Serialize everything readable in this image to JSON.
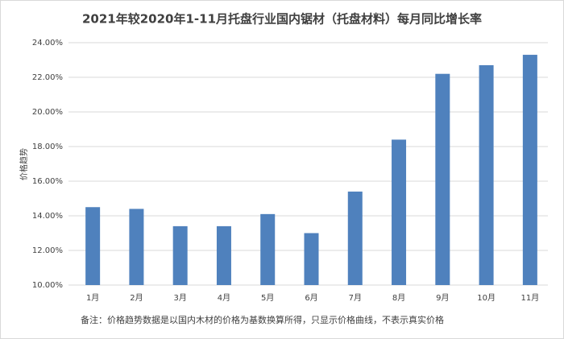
{
  "chart_data": {
    "type": "bar",
    "title": "2021年较2020年1-11月托盘行业国内锯材（托盘材料）每月同比增长率",
    "y_label": "价格趋势",
    "note": "备注：价格趋势数据是以国内木材的价格为基数换算所得，只显示价格曲线，不表示真实价格",
    "categories": [
      "1月",
      "2月",
      "3月",
      "4月",
      "5月",
      "6月",
      "7月",
      "8月",
      "9月",
      "10月",
      "11月"
    ],
    "values": [
      14.5,
      14.4,
      13.4,
      13.4,
      14.1,
      13.0,
      15.4,
      18.4,
      22.2,
      22.7,
      23.3
    ],
    "color": "#4f81bd",
    "ylim": [
      10,
      24
    ],
    "yticks": [
      {
        "value": 10,
        "label": "10.00%"
      },
      {
        "value": 12,
        "label": "12.00%"
      },
      {
        "value": 14,
        "label": "14.00%"
      },
      {
        "value": 16,
        "label": "16.00%"
      },
      {
        "value": 18,
        "label": "18.00%"
      },
      {
        "value": 20,
        "label": "20.00%"
      },
      {
        "value": 22,
        "label": "22.00%"
      },
      {
        "value": 24,
        "label": "24.00%"
      }
    ],
    "grid": true
  }
}
